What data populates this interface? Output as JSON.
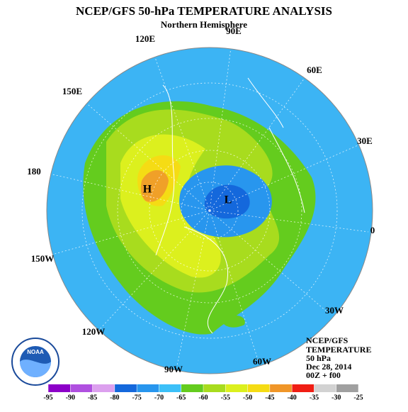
{
  "title": "NCEP/GFS 50-hPa TEMPERATURE ANALYSIS",
  "subtitle": "Northern Hemisphere",
  "longitude_labels": [
    "90E",
    "60E",
    "30E",
    "0",
    "30W",
    "60W",
    "90W",
    "120W",
    "150W",
    "180",
    "150E",
    "120E"
  ],
  "centers": [
    "H",
    "L"
  ],
  "info": [
    "NCEP/GFS",
    "TEMPERATURE",
    "50 hPa",
    "Dec 28, 2014",
    "00Z + f00"
  ],
  "logo_text": "NOAA",
  "colorbar": {
    "ticks": [
      -95,
      -90,
      -85,
      -80,
      -75,
      -70,
      -65,
      -60,
      -55,
      -50,
      -45,
      -40,
      -35,
      -30,
      -25
    ],
    "colors": [
      "#8c00c8",
      "#b050e0",
      "#dca0ee",
      "#1468dc",
      "#2896ee",
      "#3cc0f8",
      "#64cc1e",
      "#a8dc1e",
      "#dcf01e",
      "#f5dc14",
      "#f09628",
      "#f01e14",
      "#d2d2d2",
      "#a0a0a0"
    ]
  }
}
